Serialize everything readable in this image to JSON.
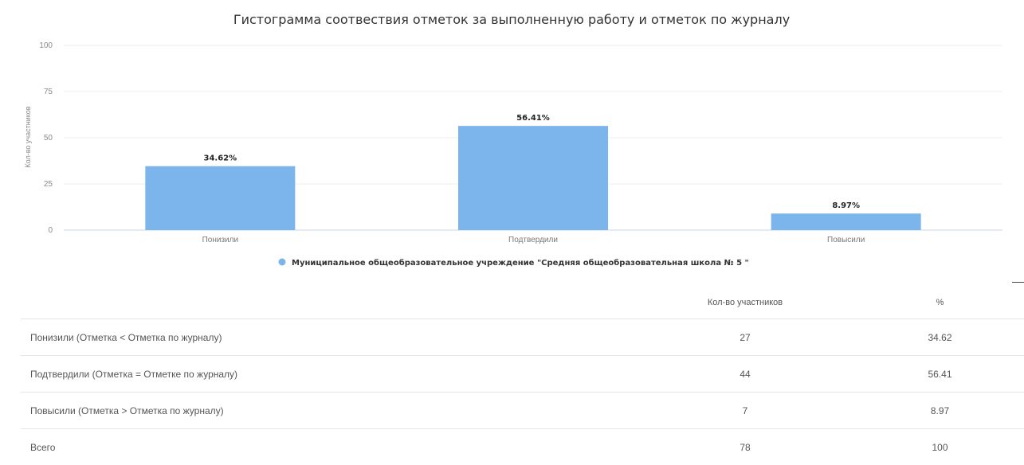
{
  "chart_data": {
    "type": "bar",
    "title": "Гистограмма соотвествия отметок за выполненную работу и отметок по журналу",
    "ylabel": "Кол-во участников",
    "xlabel": "",
    "ylim": [
      0,
      100
    ],
    "yticks": [
      0,
      25,
      50,
      75,
      100
    ],
    "categories": [
      "Понизили",
      "Подтвердили",
      "Повысили"
    ],
    "series": [
      {
        "name": "Муниципальное общеобразовательное учреждение \"Средняя общеобразовательная школа № 5 \"",
        "values": [
          34.62,
          56.41,
          8.97
        ],
        "labels": [
          "34.62%",
          "56.41%",
          "8.97%"
        ],
        "color": "#7cb5ec"
      }
    ],
    "grid": true,
    "legend": "bottom-center"
  },
  "table": {
    "headers": [
      "",
      "Кол-во участников",
      "%"
    ],
    "rows": [
      [
        "Понизили (Отметка < Отметка по журналу)",
        "27",
        "34.62"
      ],
      [
        "Подтвердили (Отметка = Отметке по журналу)",
        "44",
        "56.41"
      ],
      [
        "Повысили (Отметка > Отметка по журналу)",
        "7",
        "8.97"
      ],
      [
        "Всего",
        "78",
        "100"
      ]
    ]
  }
}
